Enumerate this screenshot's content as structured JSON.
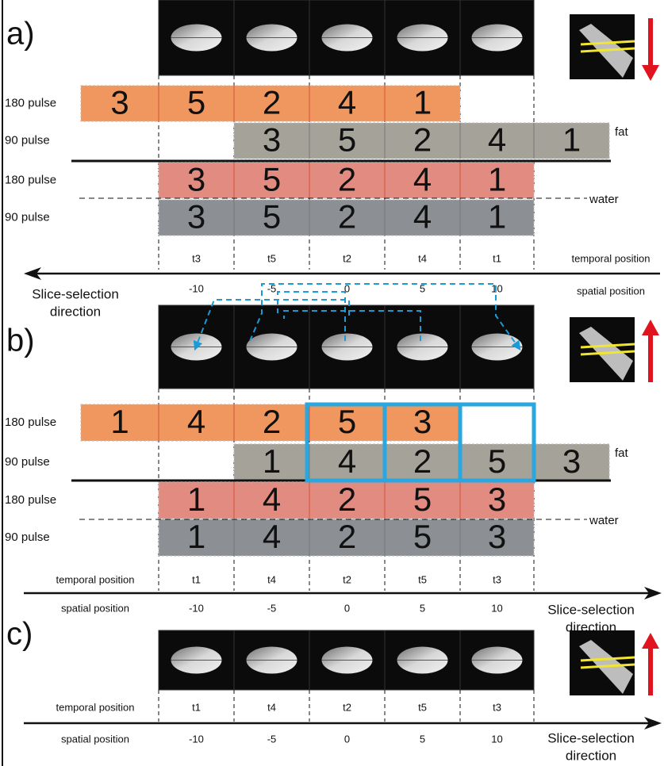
{
  "panels": [
    {
      "label": "a)",
      "rows": [
        {
          "label": "180 pulse",
          "cells": [
            3,
            5,
            2,
            4,
            1
          ]
        },
        {
          "label": "90 pulse",
          "cells": [
            3,
            5,
            2,
            4,
            1
          ]
        },
        {
          "label": "180 pulse",
          "cells": [
            3,
            5,
            2,
            4,
            1
          ]
        },
        {
          "label": "90 pulse",
          "cells": [
            3,
            5,
            2,
            4,
            1
          ]
        }
      ],
      "fat_label": "fat",
      "water_label": "water",
      "temporal_label": "temporal position",
      "temporal_positions": [
        "t3",
        "t5",
        "t2",
        "t4",
        "t1"
      ],
      "spatial_label": "spatial position",
      "spatial_positions": [
        -10,
        -5,
        0,
        5,
        10
      ],
      "direction_label": [
        "Slice-selection",
        "direction"
      ]
    },
    {
      "label": "b)",
      "rows": [
        {
          "label": "180 pulse",
          "cells": [
            1,
            4,
            2,
            5,
            3
          ]
        },
        {
          "label": "90 pulse",
          "cells": [
            1,
            4,
            2,
            5,
            3
          ]
        },
        {
          "label": "180 pulse",
          "cells": [
            1,
            4,
            2,
            5,
            3
          ]
        },
        {
          "label": "90 pulse",
          "cells": [
            1,
            4,
            2,
            5,
            3
          ]
        }
      ],
      "fat_label": "fat",
      "water_label": "water",
      "temporal_label": "temporal position",
      "temporal_positions": [
        "t1",
        "t4",
        "t2",
        "t5",
        "t3"
      ],
      "spatial_label": "spatial position",
      "spatial_positions": [
        -10,
        -5,
        0,
        5,
        10
      ],
      "direction_label": [
        "Slice-selection",
        "direction"
      ]
    },
    {
      "label": "c)",
      "temporal_label": "temporal position",
      "temporal_positions": [
        "t1",
        "t4",
        "t2",
        "t5",
        "t3"
      ],
      "spatial_label": "spatial position",
      "spatial_positions": [
        -10,
        -5,
        0,
        5,
        10
      ],
      "direction_label": [
        "Slice-selection",
        "direction"
      ]
    }
  ]
}
